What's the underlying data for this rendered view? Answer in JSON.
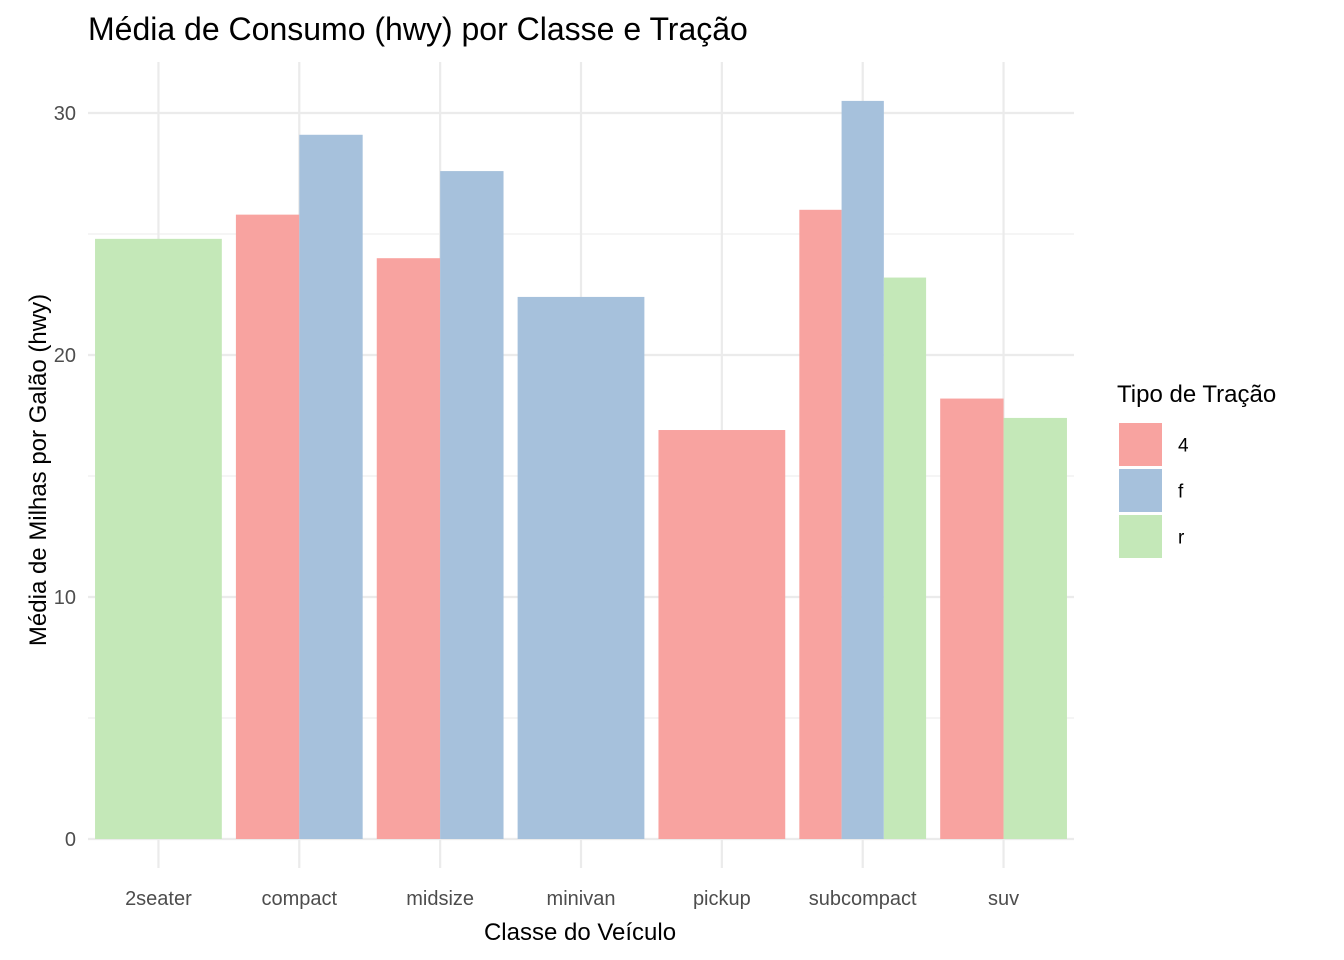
{
  "chart_data": {
    "type": "bar",
    "title": "Média de Consumo (hwy) por Classe e Tração",
    "xlabel": "Classe do Veículo",
    "ylabel": "Média de Milhas por Galão (hwy)",
    "ylim": [
      0,
      32
    ],
    "yticks": [
      "0",
      "10",
      "20",
      "30"
    ],
    "categories": [
      "2seater",
      "compact",
      "midsize",
      "minivan",
      "pickup",
      "subcompact",
      "suv"
    ],
    "grid": true,
    "legend": {
      "title": "Tipo de Tração",
      "position": "right",
      "entries": [
        "4",
        "f",
        "r"
      ]
    },
    "colors": {
      "4": "#F8A3A0",
      "f": "#A6C1DC",
      "r": "#C4E8B8"
    },
    "bars": [
      {
        "category": "2seater",
        "drive": "r",
        "value": 24.8
      },
      {
        "category": "compact",
        "drive": "4",
        "value": 25.8
      },
      {
        "category": "compact",
        "drive": "f",
        "value": 29.1
      },
      {
        "category": "midsize",
        "drive": "4",
        "value": 24.0
      },
      {
        "category": "midsize",
        "drive": "f",
        "value": 27.6
      },
      {
        "category": "minivan",
        "drive": "f",
        "value": 22.4
      },
      {
        "category": "pickup",
        "drive": "4",
        "value": 16.9
      },
      {
        "category": "subcompact",
        "drive": "4",
        "value": 26.0
      },
      {
        "category": "subcompact",
        "drive": "f",
        "value": 30.5
      },
      {
        "category": "subcompact",
        "drive": "r",
        "value": 23.2
      },
      {
        "category": "suv",
        "drive": "4",
        "value": 18.2
      },
      {
        "category": "suv",
        "drive": "r",
        "value": 17.4
      }
    ]
  }
}
